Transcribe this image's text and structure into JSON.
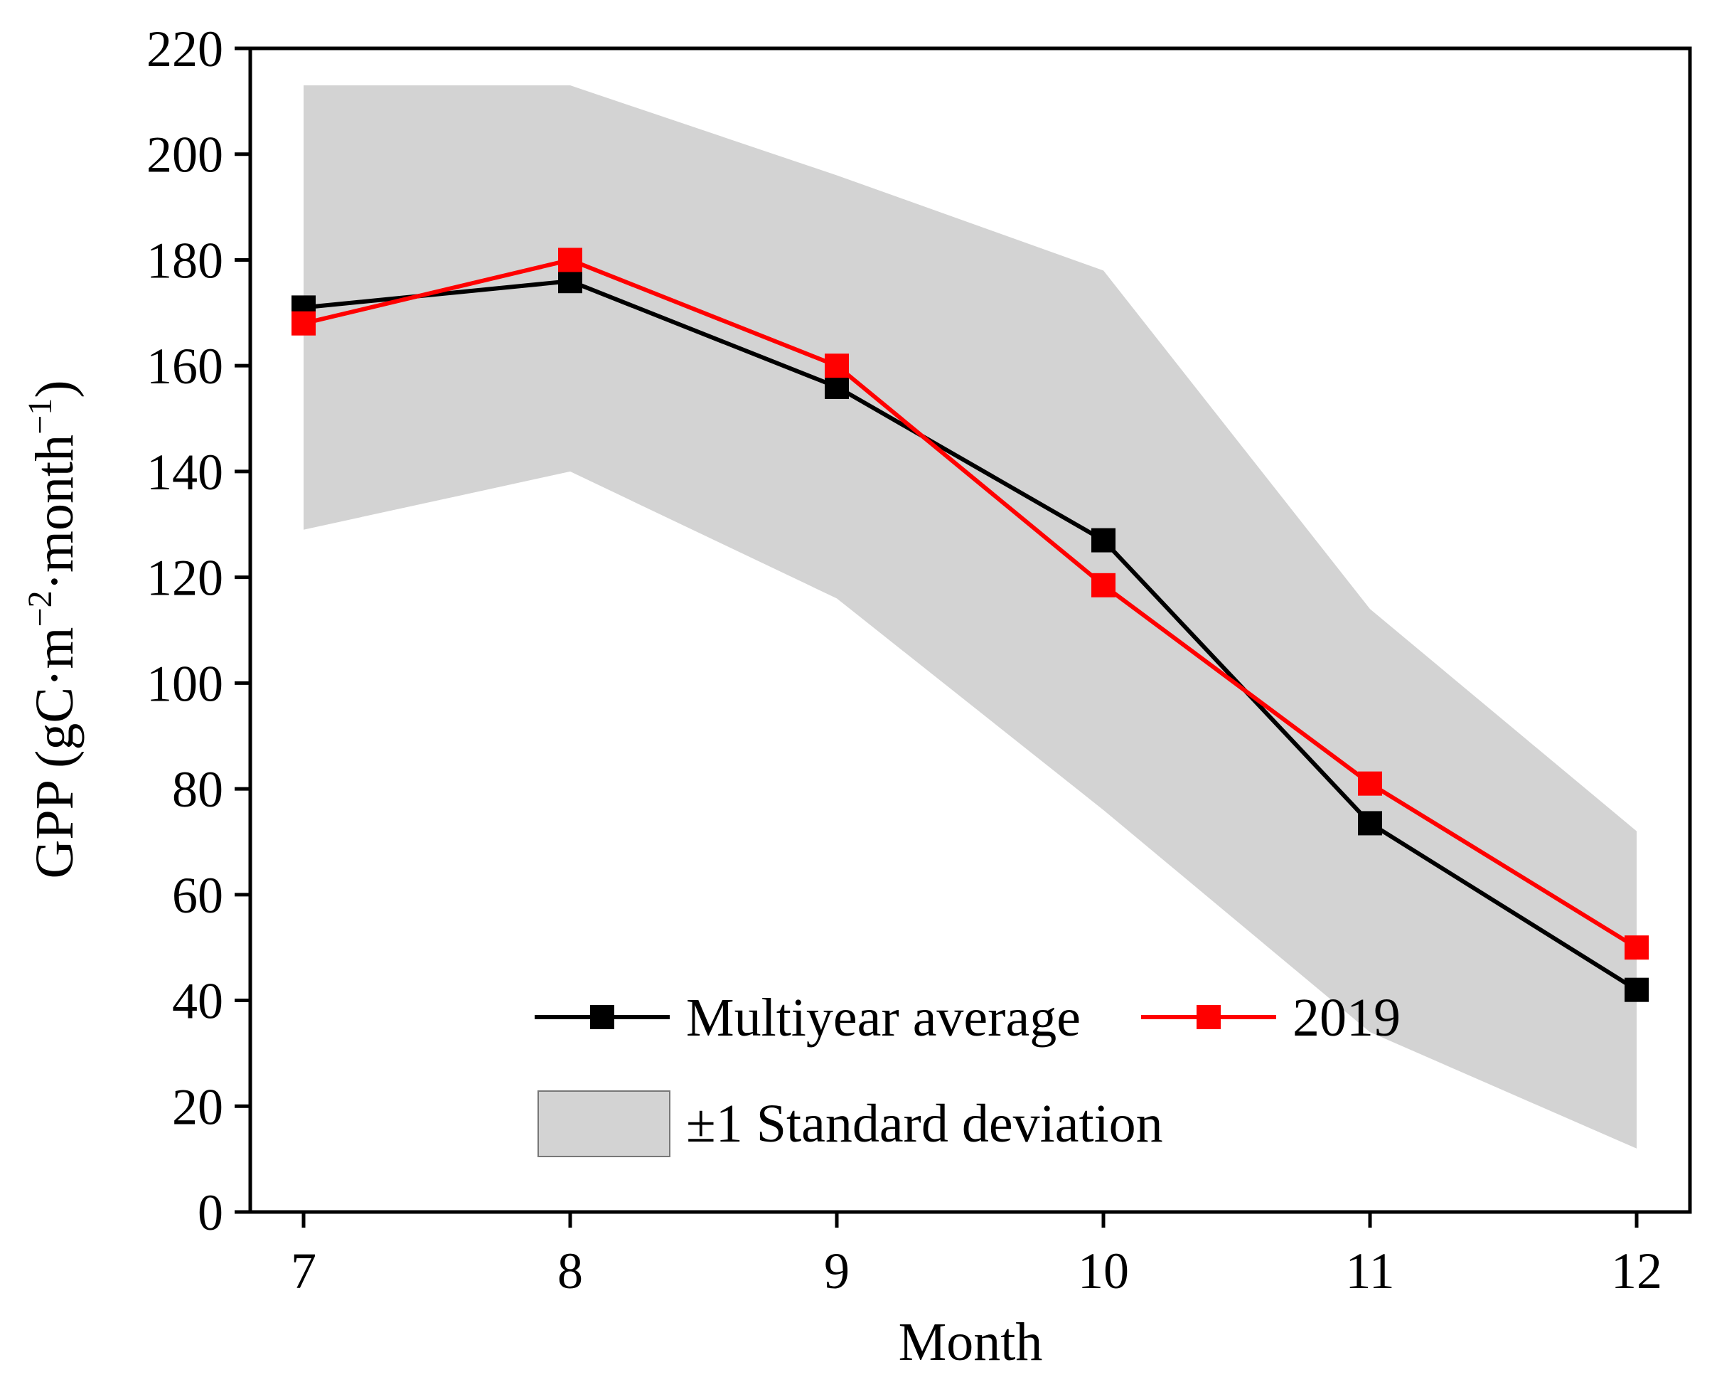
{
  "chart_data": {
    "type": "line",
    "title": "",
    "xlabel": "Month",
    "ylabel": "GPP (gC·m−2·month−1)",
    "ylabel_parts": {
      "prefix": "GPP (gC·m",
      "sup1": "−2",
      "mid": "·month",
      "sup2": "−1",
      "suffix": ")"
    },
    "x": [
      7,
      8,
      9,
      10,
      11,
      12
    ],
    "xlim": [
      6.8,
      12.2
    ],
    "ylim": [
      0,
      220
    ],
    "yticks": [
      0,
      20,
      40,
      60,
      80,
      100,
      120,
      140,
      160,
      180,
      200,
      220
    ],
    "grid": false,
    "legend_position": "bottom-center",
    "series": [
      {
        "name": "Multiyear average",
        "color": "#000000",
        "marker": "square",
        "values": [
          171,
          176,
          156,
          127,
          73.5,
          42
        ]
      },
      {
        "name": "2019",
        "color": "#ff0000",
        "marker": "square",
        "values": [
          168,
          180,
          160,
          118.5,
          81,
          50
        ]
      }
    ],
    "band": {
      "name": "±1 Standard deviation",
      "color": "#d3d3d3",
      "upper": [
        213,
        213,
        196,
        178,
        114,
        72
      ],
      "lower": [
        129,
        140,
        116,
        76,
        34,
        12
      ]
    }
  }
}
